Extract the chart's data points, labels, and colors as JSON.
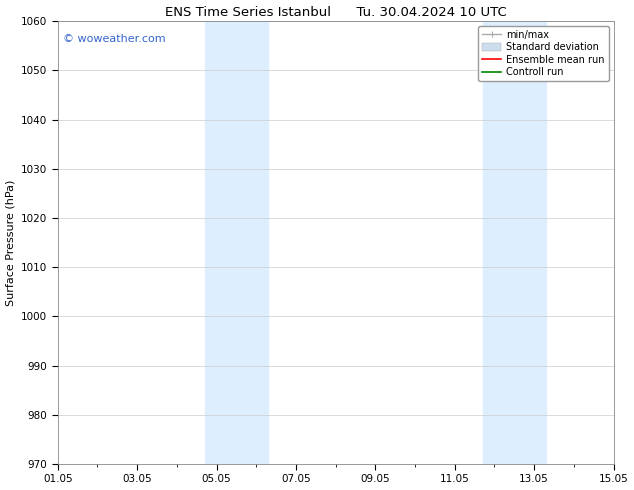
{
  "title": "ENS Time Series Istanbul      Tu. 30.04.2024 10 UTC",
  "ylabel": "Surface Pressure (hPa)",
  "ylim": [
    970,
    1060
  ],
  "yticks": [
    970,
    980,
    990,
    1000,
    1010,
    1020,
    1030,
    1040,
    1050,
    1060
  ],
  "xtick_labels": [
    "01.05",
    "03.05",
    "05.05",
    "07.05",
    "09.05",
    "11.05",
    "13.05",
    "15.05"
  ],
  "xtick_positions": [
    0,
    2,
    4,
    6,
    8,
    10,
    12,
    14
  ],
  "xlim": [
    0,
    14
  ],
  "shade_bands": [
    {
      "x_start": 3.7,
      "x_end": 5.3
    },
    {
      "x_start": 10.7,
      "x_end": 12.3
    }
  ],
  "shade_color": "#ddeeff",
  "background_color": "#ffffff",
  "watermark_text": "© woweather.com",
  "watermark_color": "#3366cc",
  "legend_items": [
    {
      "label": "min/max",
      "color": "#aaaaaa",
      "lw": 1.0
    },
    {
      "label": "Standard deviation",
      "color": "#ccddee",
      "lw": 8
    },
    {
      "label": "Ensemble mean run",
      "color": "#ff0000",
      "lw": 1.2
    },
    {
      "label": "Controll run",
      "color": "#008800",
      "lw": 1.2
    }
  ],
  "grid_color": "#cccccc",
  "title_fontsize": 9.5,
  "axis_label_fontsize": 8,
  "tick_fontsize": 7.5,
  "watermark_fontsize": 8,
  "legend_fontsize": 7
}
